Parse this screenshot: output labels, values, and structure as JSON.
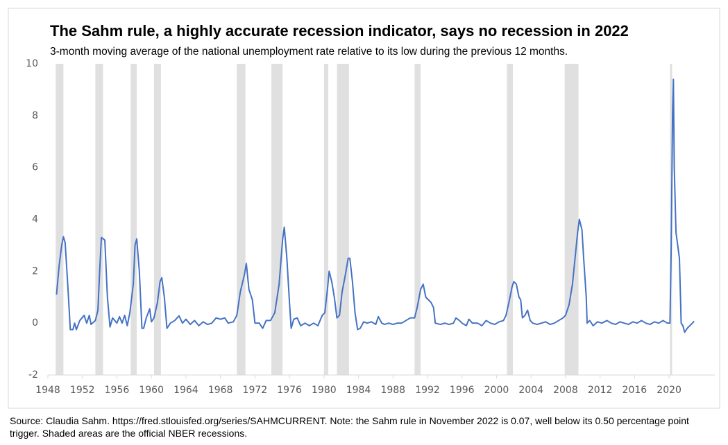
{
  "chart_data": {
    "type": "line",
    "title": "The Sahm rule, a highly accurate recession indicator, says no recession in 2022",
    "subtitle": "3-month moving average of the national unemployment rate relative to its low during the previous 12 months.",
    "note": "Source: Claudia Sahm. https://fred.stlouisfed.org/series/SAHMCURRENT. Note: the Sahm rule in November 2022 is 0.07, well below its 0.50 percentage point trigger. Shaded areas are the official NBER recessions.",
    "xlim": [
      1948,
      2025.3
    ],
    "xticks": [
      1948,
      1952,
      1956,
      1960,
      1964,
      1968,
      1972,
      1976,
      1980,
      1984,
      1988,
      1992,
      1996,
      2000,
      2004,
      2008,
      2012,
      2016,
      2020
    ],
    "ylim": [
      -2,
      10
    ],
    "yticks": [
      -2,
      0,
      2,
      4,
      6,
      8,
      10
    ],
    "recession_color": "#e0e0e0",
    "recessions": [
      [
        1948.9,
        1949.8
      ],
      [
        1953.5,
        1954.4
      ],
      [
        1957.6,
        1958.3
      ],
      [
        1960.3,
        1961.1
      ],
      [
        1969.9,
        1970.9
      ],
      [
        1973.9,
        1975.2
      ],
      [
        1980.0,
        1980.5
      ],
      [
        1981.5,
        1982.9
      ],
      [
        1990.5,
        1991.2
      ],
      [
        2001.2,
        2001.9
      ],
      [
        2007.9,
        2009.5
      ],
      [
        2020.1,
        2020.35
      ]
    ],
    "series": [
      {
        "color": "#4472c4",
        "x": [
          1949.0,
          1949.3,
          1949.6,
          1949.8,
          1950.0,
          1950.3,
          1950.6,
          1950.9,
          1951.1,
          1951.3,
          1951.7,
          1952.2,
          1952.5,
          1952.8,
          1953.0,
          1953.5,
          1953.8,
          1954.0,
          1954.2,
          1954.6,
          1954.9,
          1955.2,
          1955.5,
          1956.0,
          1956.3,
          1956.6,
          1956.9,
          1957.2,
          1957.5,
          1957.9,
          1958.1,
          1958.3,
          1958.6,
          1958.9,
          1959.1,
          1959.4,
          1959.8,
          1960.0,
          1960.3,
          1960.7,
          1961.0,
          1961.2,
          1961.5,
          1961.8,
          1962.2,
          1962.7,
          1963.2,
          1963.6,
          1964.0,
          1964.5,
          1965.0,
          1965.5,
          1966.0,
          1966.5,
          1967.0,
          1967.5,
          1968.0,
          1968.5,
          1968.9,
          1969.5,
          1969.9,
          1970.3,
          1970.8,
          1971.0,
          1971.3,
          1971.7,
          1972.0,
          1972.5,
          1972.9,
          1973.3,
          1973.8,
          1974.3,
          1974.8,
          1975.2,
          1975.4,
          1975.7,
          1976.0,
          1976.2,
          1976.5,
          1976.9,
          1977.3,
          1977.8,
          1978.3,
          1978.8,
          1979.3,
          1979.8,
          1980.1,
          1980.4,
          1980.6,
          1980.9,
          1981.2,
          1981.5,
          1981.8,
          1982.1,
          1982.5,
          1982.8,
          1983.0,
          1983.3,
          1983.6,
          1983.9,
          1984.2,
          1984.6,
          1985.0,
          1985.5,
          1986.0,
          1986.3,
          1986.7,
          1987.0,
          1987.5,
          1988.0,
          1988.5,
          1989.0,
          1989.5,
          1990.0,
          1990.5,
          1990.8,
          1991.2,
          1991.5,
          1991.8,
          1992.1,
          1992.4,
          1992.7,
          1992.9,
          1993.5,
          1994.0,
          1994.5,
          1995.0,
          1995.3,
          1995.7,
          1996.0,
          1996.5,
          1996.8,
          1997.2,
          1997.8,
          1998.3,
          1998.8,
          1999.3,
          1999.8,
          2000.3,
          2000.8,
          2001.1,
          2001.5,
          2001.8,
          2002.0,
          2002.3,
          2002.6,
          2002.8,
          2003.0,
          2003.3,
          2003.6,
          2003.9,
          2004.2,
          2004.7,
          2005.2,
          2005.7,
          2006.2,
          2006.7,
          2007.2,
          2007.7,
          2008.0,
          2008.4,
          2008.8,
          2009.1,
          2009.4,
          2009.6,
          2009.9,
          2010.1,
          2010.4,
          2010.5,
          2010.8,
          2011.2,
          2011.7,
          2012.2,
          2012.8,
          2013.3,
          2013.8,
          2014.3,
          2014.8,
          2015.3,
          2015.8,
          2016.3,
          2016.8,
          2017.3,
          2017.8,
          2018.3,
          2018.8,
          2019.3,
          2019.8,
          2020.1,
          2020.25,
          2020.4,
          2020.5,
          2020.6,
          2020.8,
          2021.0,
          2021.2,
          2021.4,
          2021.6,
          2021.8,
          2022.1,
          2022.4,
          2022.7,
          2022.9
        ],
        "values": [
          1.1,
          2.2,
          3.0,
          3.33,
          3.1,
          1.5,
          -0.25,
          -0.25,
          0,
          -0.25,
          0.1,
          0.3,
          0.0,
          0.3,
          -0.05,
          0.1,
          0.5,
          2.0,
          3.3,
          3.2,
          1.0,
          -0.15,
          0.2,
          0.0,
          0.25,
          0.0,
          0.3,
          -0.1,
          0.4,
          1.5,
          3.0,
          3.25,
          2.0,
          -0.2,
          -0.2,
          0.2,
          0.55,
          0.05,
          0.2,
          0.8,
          1.6,
          1.75,
          1.0,
          -0.2,
          0.0,
          0.1,
          0.28,
          0.0,
          0.15,
          -0.05,
          0.1,
          -0.1,
          0.05,
          -0.05,
          0.0,
          0.2,
          0.15,
          0.2,
          0.0,
          0.05,
          0.3,
          1.2,
          1.9,
          2.3,
          1.3,
          0.9,
          0.0,
          0.0,
          -0.2,
          0.1,
          0.1,
          0.4,
          1.5,
          3.2,
          3.7,
          2.5,
          0.8,
          -0.2,
          0.15,
          0.2,
          -0.1,
          0.0,
          -0.1,
          0.0,
          -0.1,
          0.3,
          0.4,
          1.3,
          2.0,
          1.6,
          1.0,
          0.2,
          0.3,
          1.2,
          1.9,
          2.5,
          2.5,
          1.6,
          0.4,
          -0.25,
          -0.2,
          0.05,
          0.0,
          0.05,
          -0.05,
          0.25,
          0.0,
          -0.05,
          0.0,
          -0.05,
          0.0,
          0.0,
          0.1,
          0.2,
          0.2,
          0.6,
          1.3,
          1.5,
          1.0,
          0.9,
          0.8,
          0.6,
          0.0,
          -0.05,
          0.0,
          -0.05,
          0.0,
          0.2,
          0.1,
          0.0,
          -0.1,
          0.15,
          0.0,
          0.0,
          -0.1,
          0.1,
          0.0,
          -0.05,
          0.05,
          0.1,
          0.3,
          0.9,
          1.4,
          1.6,
          1.5,
          1.0,
          0.9,
          0.2,
          0.3,
          0.5,
          0.1,
          0.0,
          -0.05,
          0.0,
          0.05,
          -0.05,
          0.0,
          0.1,
          0.2,
          0.3,
          0.7,
          1.5,
          2.5,
          3.5,
          4.0,
          3.6,
          2.5,
          1.0,
          0.0,
          0.1,
          -0.1,
          0.05,
          0.0,
          0.1,
          0.0,
          -0.05,
          0.05,
          0.0,
          -0.05,
          0.05,
          0.0,
          0.1,
          0.0,
          -0.05,
          0.05,
          0.0,
          0.1,
          0.0,
          0.0,
          3.0,
          8.0,
          9.4,
          6.0,
          3.5,
          3.0,
          2.5,
          0.0,
          -0.1,
          -0.35,
          -0.2,
          -0.1,
          0.0,
          0.07
        ]
      }
    ]
  }
}
